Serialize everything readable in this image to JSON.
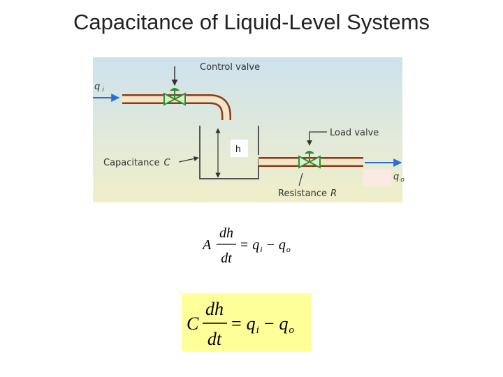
{
  "title": "Capacitance of Liquid-Level Systems",
  "diagram": {
    "control_valve": "Control valve",
    "inflow": {
      "symbol": "q",
      "subscript": "i"
    },
    "level": "h",
    "load_valve": "Load valve",
    "capacitance": {
      "text": "Capacitance",
      "symbol": "C"
    },
    "resistance": {
      "text": "Resistance",
      "symbol": "R"
    },
    "outflow": {
      "symbol": "q",
      "subscript": "o"
    }
  },
  "equations": [
    {
      "coefficient": "A",
      "numerator": "dh",
      "denominator": "dt",
      "equals": "=",
      "q1": "q",
      "sub1": "i",
      "minus": "−",
      "q2": "q",
      "sub2": "o"
    },
    {
      "coefficient": "C",
      "numerator": "dh",
      "denominator": "dt",
      "equals": "=",
      "q1": "q",
      "sub1": "i",
      "minus": "−",
      "q2": "q",
      "sub2": "o"
    }
  ]
}
